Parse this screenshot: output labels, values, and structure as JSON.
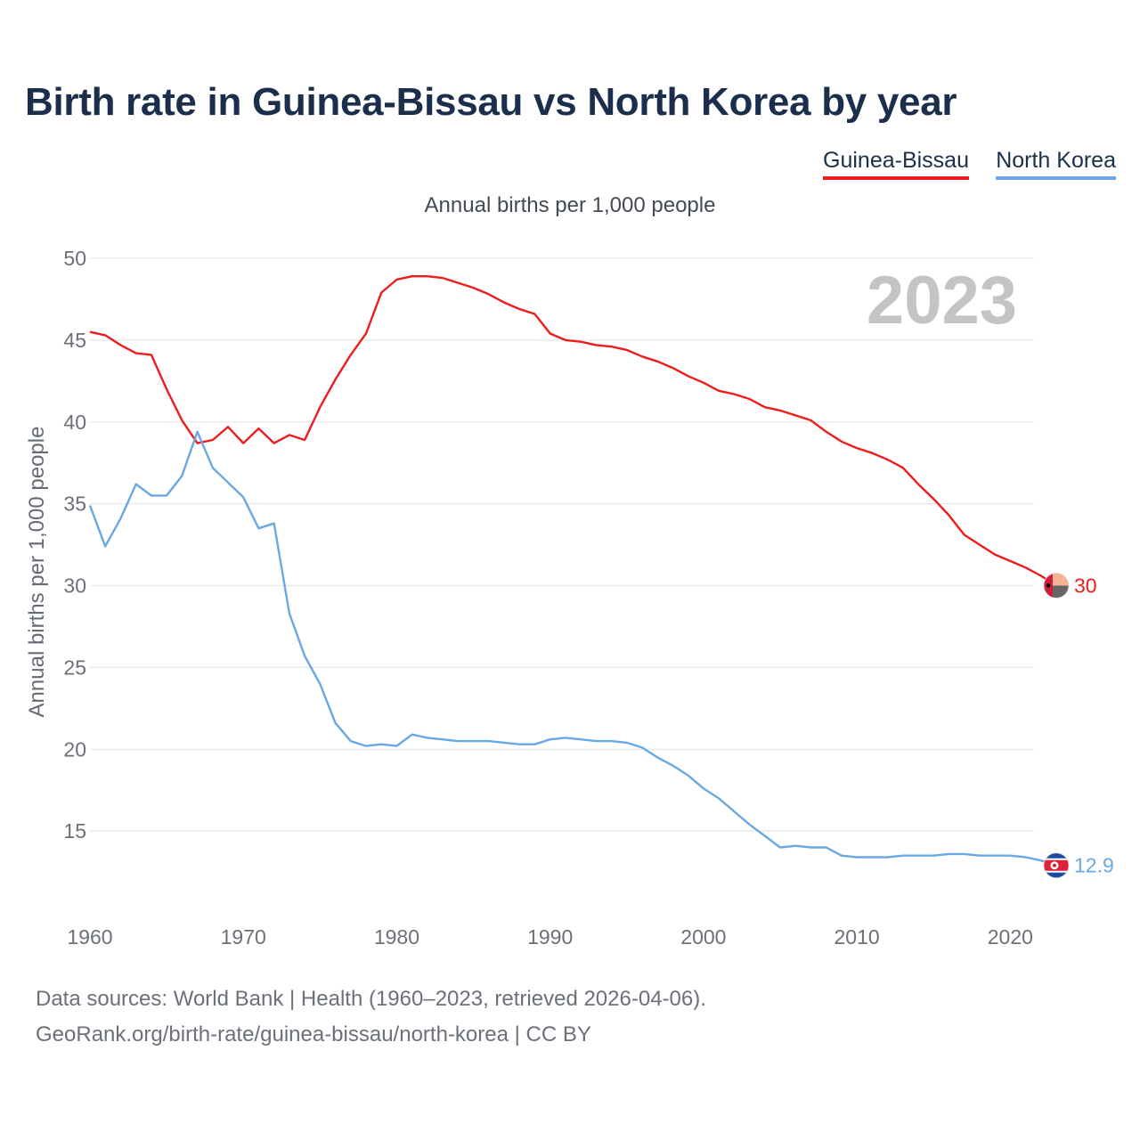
{
  "title": "Birth rate in Guinea-Bissau vs North Korea by year",
  "subtitle": "Annual births per 1,000 people",
  "year_watermark": "2023",
  "legend": [
    {
      "name": "Guinea-Bissau",
      "color": "#ee1c1c"
    },
    {
      "name": "North Korea",
      "color": "#6aa8e4"
    }
  ],
  "footer": {
    "source": "Data sources: World Bank | Health (1960–2023, retrieved 2026-04-06).",
    "url": "GeoRank.org/birth-rate/guinea-bissau/north-korea | CC BY"
  },
  "chart_data": {
    "type": "line",
    "title": "Birth rate in Guinea-Bissau vs North Korea by year",
    "ylabel": "Annual births per 1,000 people",
    "xlabel": "",
    "xlim": [
      1960,
      2023
    ],
    "ylim": [
      10,
      50
    ],
    "yticks": [
      15,
      20,
      25,
      30,
      35,
      40,
      45,
      50
    ],
    "xticks": [
      1960,
      1970,
      1980,
      1990,
      2000,
      2010,
      2020
    ],
    "grid": true,
    "x": [
      1960,
      1961,
      1962,
      1963,
      1964,
      1965,
      1966,
      1967,
      1968,
      1969,
      1970,
      1971,
      1972,
      1973,
      1974,
      1975,
      1976,
      1977,
      1978,
      1979,
      1980,
      1981,
      1982,
      1983,
      1984,
      1985,
      1986,
      1987,
      1988,
      1989,
      1990,
      1991,
      1992,
      1993,
      1994,
      1995,
      1996,
      1997,
      1998,
      1999,
      2000,
      2001,
      2002,
      2003,
      2004,
      2005,
      2006,
      2007,
      2008,
      2009,
      2010,
      2011,
      2012,
      2013,
      2014,
      2015,
      2016,
      2017,
      2018,
      2019,
      2020,
      2021,
      2022,
      2023
    ],
    "series": [
      {
        "name": "Guinea-Bissau",
        "color": "#ee1c1c",
        "end_label": "30",
        "values": [
          45.5,
          45.3,
          44.7,
          44.2,
          44.1,
          42.0,
          40.1,
          38.7,
          38.9,
          39.7,
          38.7,
          39.6,
          38.7,
          39.2,
          38.9,
          40.9,
          42.6,
          44.1,
          45.4,
          47.9,
          48.7,
          48.9,
          48.9,
          48.8,
          48.5,
          48.2,
          47.8,
          47.3,
          46.9,
          46.6,
          45.4,
          45.0,
          44.9,
          44.7,
          44.6,
          44.4,
          44.0,
          43.7,
          43.3,
          42.8,
          42.4,
          41.9,
          41.7,
          41.4,
          40.9,
          40.7,
          40.4,
          40.1,
          39.4,
          38.8,
          38.4,
          38.1,
          37.7,
          37.2,
          36.2,
          35.3,
          34.3,
          33.1,
          32.5,
          31.9,
          31.5,
          31.1,
          30.6,
          30.0
        ]
      },
      {
        "name": "North Korea",
        "color": "#6aa8e4",
        "end_label": "12.9",
        "values": [
          34.9,
          32.4,
          34.1,
          36.2,
          35.5,
          35.5,
          36.7,
          39.4,
          37.2,
          36.3,
          35.4,
          33.5,
          33.8,
          28.3,
          25.7,
          24.0,
          21.6,
          20.5,
          20.2,
          20.3,
          20.2,
          20.9,
          20.7,
          20.6,
          20.5,
          20.5,
          20.5,
          20.4,
          20.3,
          20.3,
          20.6,
          20.7,
          20.6,
          20.5,
          20.5,
          20.4,
          20.1,
          19.5,
          19.0,
          18.4,
          17.6,
          17.0,
          16.2,
          15.4,
          14.7,
          14.0,
          14.1,
          14.0,
          14.0,
          13.5,
          13.4,
          13.4,
          13.4,
          13.5,
          13.5,
          13.5,
          13.6,
          13.6,
          13.5,
          13.5,
          13.5,
          13.4,
          13.2,
          12.9
        ]
      }
    ]
  }
}
